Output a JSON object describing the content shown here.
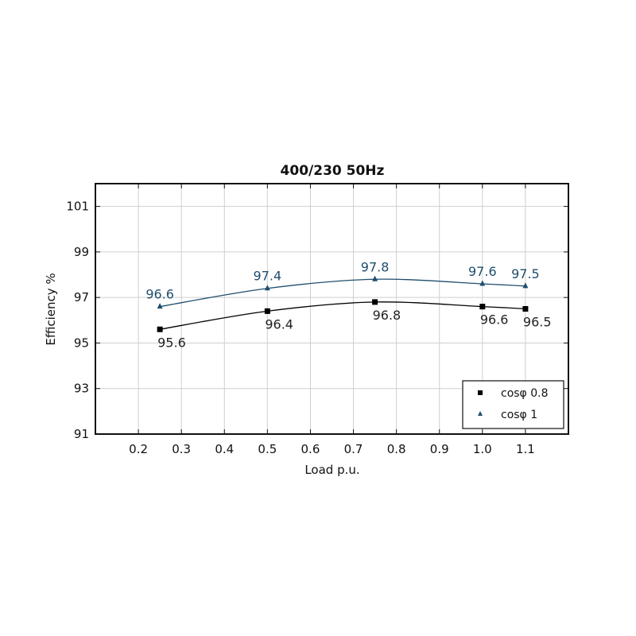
{
  "chart_data": {
    "type": "line",
    "title": "400/230 50Hz",
    "xlabel": "Load p.u.",
    "ylabel": "Efficiency %",
    "xlim": [
      0.1,
      1.2
    ],
    "ylim": [
      91,
      102
    ],
    "xticks": [
      0.2,
      0.3,
      0.4,
      0.5,
      0.6,
      0.7,
      0.8,
      0.9,
      1.0,
      1.1
    ],
    "xtick_labels": [
      "0.2",
      "0.3",
      "0.4",
      "0.5",
      "0.6",
      "0.7",
      "0.8",
      "0.9",
      "1.0",
      "1.1"
    ],
    "yticks": [
      91,
      93,
      95,
      97,
      99,
      101
    ],
    "ytick_labels": [
      "91",
      "93",
      "95",
      "97",
      "99",
      "101"
    ],
    "grid": true,
    "legend_position": "bottom-right",
    "series": [
      {
        "name": "cosφ 0.8",
        "marker": "square",
        "color": "#000000",
        "label_color": "#222222",
        "label_side": "below",
        "x": [
          0.25,
          0.5,
          0.75,
          1.0,
          1.1
        ],
        "y": [
          95.6,
          96.4,
          96.8,
          96.6,
          96.5
        ],
        "labels": [
          "95.6",
          "96.4",
          "96.8",
          "96.6",
          "96.5"
        ]
      },
      {
        "name": "cosφ 1",
        "marker": "triangle",
        "color": "#1f4e6e",
        "label_color": "#1f4e6e",
        "label_side": "above",
        "x": [
          0.25,
          0.5,
          0.75,
          1.0,
          1.1
        ],
        "y": [
          96.6,
          97.4,
          97.8,
          97.6,
          97.5
        ],
        "labels": [
          "96.6",
          "97.4",
          "97.8",
          "97.6",
          "97.5"
        ]
      }
    ]
  }
}
